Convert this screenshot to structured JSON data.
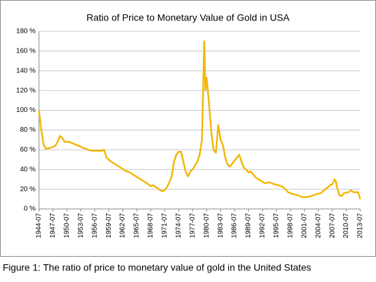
{
  "chart_data": {
    "type": "line",
    "title": "Ratio of Price to Monetary Value of Gold in USA",
    "caption": "Figure 1: The ratio of price to monetary value of gold in the United States",
    "x": [
      "1944-07",
      "1945-01",
      "1945-07",
      "1946-01",
      "1947-01",
      "1948-01",
      "1948-07",
      "1949-01",
      "1949-07",
      "1950-01",
      "1951-01",
      "1952-01",
      "1953-01",
      "1954-01",
      "1955-01",
      "1956-01",
      "1957-01",
      "1958-01",
      "1958-07",
      "1959-01",
      "1960-01",
      "1961-01",
      "1962-01",
      "1963-01",
      "1964-01",
      "1965-01",
      "1966-01",
      "1967-01",
      "1968-01",
      "1968-07",
      "1969-01",
      "1970-01",
      "1970-07",
      "1971-01",
      "1971-07",
      "1972-01",
      "1972-07",
      "1973-01",
      "1973-07",
      "1974-01",
      "1974-07",
      "1975-01",
      "1975-07",
      "1976-01",
      "1976-07",
      "1977-01",
      "1977-07",
      "1978-01",
      "1978-07",
      "1979-01",
      "1979-07",
      "1980-01",
      "1980-04",
      "1980-07",
      "1981-01",
      "1981-07",
      "1982-01",
      "1982-07",
      "1983-01",
      "1983-07",
      "1984-01",
      "1984-07",
      "1985-01",
      "1985-07",
      "1986-01",
      "1986-07",
      "1987-01",
      "1987-07",
      "1988-01",
      "1988-07",
      "1989-01",
      "1989-07",
      "1990-01",
      "1990-07",
      "1991-01",
      "1992-01",
      "1993-01",
      "1994-01",
      "1995-01",
      "1996-01",
      "1997-01",
      "1998-01",
      "1999-01",
      "2000-01",
      "2001-01",
      "2002-01",
      "2003-01",
      "2004-01",
      "2005-01",
      "2006-01",
      "2007-01",
      "2007-07",
      "2008-01",
      "2008-04",
      "2008-07",
      "2009-01",
      "2009-07",
      "2010-01",
      "2011-01",
      "2011-07",
      "2012-01",
      "2013-01",
      "2013-07"
    ],
    "series": [
      {
        "name": "Ratio",
        "color": "#f2b705",
        "values": [
          100,
          80,
          65,
          61,
          62,
          64,
          68,
          74,
          72,
          68,
          68,
          66,
          64,
          62,
          60,
          59,
          59,
          59,
          60,
          52,
          48,
          45,
          42,
          39,
          37,
          34,
          31,
          28,
          25,
          23,
          24,
          21,
          19,
          18,
          19,
          22,
          27,
          33,
          48,
          55,
          58,
          58,
          48,
          38,
          33,
          38,
          40,
          44,
          48,
          55,
          70,
          170,
          120,
          133,
          108,
          78,
          60,
          57,
          85,
          70,
          65,
          52,
          45,
          43,
          46,
          49,
          52,
          55,
          48,
          42,
          40,
          37,
          38,
          35,
          32,
          29,
          26,
          27,
          25,
          24,
          22,
          17,
          15,
          14,
          12,
          12,
          13,
          15,
          16,
          20,
          24,
          25,
          30,
          28,
          22,
          14,
          13,
          16,
          17,
          19,
          17,
          17,
          10
        ]
      }
    ],
    "xlim": [
      "1944-07",
      "2013-07"
    ],
    "xticks": [
      "1944-07",
      "1947-07",
      "1950-07",
      "1953-07",
      "1956-07",
      "1959-07",
      "1962-07",
      "1965-07",
      "1968-07",
      "1971-07",
      "1974-07",
      "1977-07",
      "1980-07",
      "1983-07",
      "1986-07",
      "1989-07",
      "1992-07",
      "1995-07",
      "1998-07",
      "2001-07",
      "2004-07",
      "2007-07",
      "2010-07",
      "2013-07"
    ],
    "ylim": [
      0,
      180
    ],
    "yticks": [
      {
        "value": 0,
        "label": "0 %"
      },
      {
        "value": 20,
        "label": "20 %"
      },
      {
        "value": 40,
        "label": "40 %"
      },
      {
        "value": 60,
        "label": "60 %"
      },
      {
        "value": 80,
        "label": "80 %"
      },
      {
        "value": 100,
        "label": "100 %"
      },
      {
        "value": 120,
        "label": "120 %"
      },
      {
        "value": 140,
        "label": "140 %"
      },
      {
        "value": 160,
        "label": "160 %"
      },
      {
        "value": 180,
        "label": "180 %"
      }
    ],
    "grid": true
  }
}
